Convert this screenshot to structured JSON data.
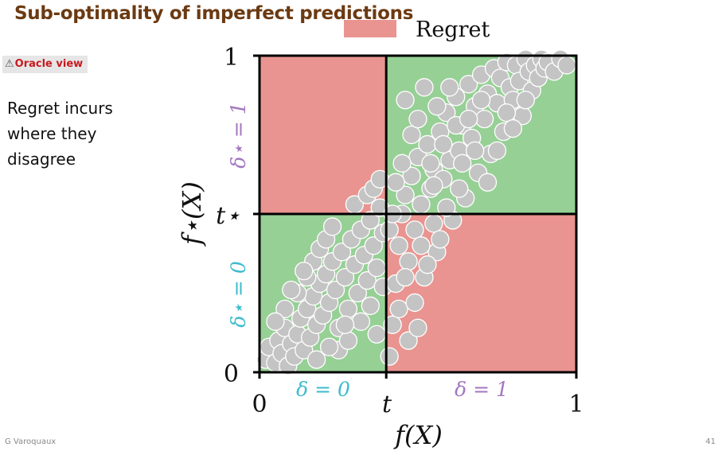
{
  "slide": {
    "title": "Sub-optimality of imperfect predictions",
    "badge_label": "Oracle view",
    "badge_icon": "warning-triangle-icon",
    "side_text": "Regret incurs where they disagree",
    "author": "G Varoquaux",
    "page_number": "41"
  },
  "colors": {
    "title": "#6b3a12",
    "badge_text": "#c8191e",
    "regret": "#e99490",
    "agree": "#96d095",
    "points": "#c4c4c4",
    "delta_one": "#a377bf",
    "delta_zero": "#3cbccc"
  },
  "chart_data": {
    "type": "scatter",
    "xlabel": "f(X)",
    "ylabel": "f⋆(X)",
    "xlim": [
      0,
      1
    ],
    "ylim": [
      0,
      1
    ],
    "threshold_x": 0.4,
    "threshold_y": 0.5,
    "x_tick_labels": [
      "0",
      "t",
      "1"
    ],
    "y_tick_labels": [
      "0",
      "t⋆",
      "1"
    ],
    "legend": {
      "label": "Regret",
      "placement": "top"
    },
    "region_labels": {
      "x_low": "δ = 0",
      "x_high": "δ = 1",
      "y_low": "δ⋆ = 0",
      "y_high": "δ⋆ = 1"
    },
    "regions": [
      {
        "x": [
          0,
          0.4
        ],
        "y": [
          0.5,
          1
        ],
        "kind": "regret"
      },
      {
        "x": [
          0.4,
          1
        ],
        "y": [
          0,
          0.5
        ],
        "kind": "regret"
      },
      {
        "x": [
          0,
          0.4
        ],
        "y": [
          0,
          0.5
        ],
        "kind": "agree"
      },
      {
        "x": [
          0.4,
          1
        ],
        "y": [
          0.5,
          1
        ],
        "kind": "agree"
      }
    ],
    "points": [
      [
        0.02,
        0.04
      ],
      [
        0.03,
        0.08
      ],
      [
        0.05,
        0.03
      ],
      [
        0.06,
        0.1
      ],
      [
        0.07,
        0.06
      ],
      [
        0.08,
        0.14
      ],
      [
        0.09,
        0.02
      ],
      [
        0.1,
        0.09
      ],
      [
        0.11,
        0.05
      ],
      [
        0.12,
        0.12
      ],
      [
        0.13,
        0.17
      ],
      [
        0.14,
        0.07
      ],
      [
        0.15,
        0.2
      ],
      [
        0.16,
        0.11
      ],
      [
        0.17,
        0.24
      ],
      [
        0.18,
        0.15
      ],
      [
        0.19,
        0.28
      ],
      [
        0.2,
        0.18
      ],
      [
        0.21,
        0.31
      ],
      [
        0.22,
        0.22
      ],
      [
        0.23,
        0.35
      ],
      [
        0.24,
        0.26
      ],
      [
        0.25,
        0.14
      ],
      [
        0.26,
        0.38
      ],
      [
        0.27,
        0.3
      ],
      [
        0.28,
        0.2
      ],
      [
        0.29,
        0.42
      ],
      [
        0.3,
        0.34
      ],
      [
        0.31,
        0.25
      ],
      [
        0.32,
        0.45
      ],
      [
        0.33,
        0.37
      ],
      [
        0.34,
        0.29
      ],
      [
        0.35,
        0.48
      ],
      [
        0.36,
        0.4
      ],
      [
        0.37,
        0.33
      ],
      [
        0.38,
        0.52
      ],
      [
        0.39,
        0.44
      ],
      [
        0.15,
        0.3
      ],
      [
        0.17,
        0.35
      ],
      [
        0.19,
        0.39
      ],
      [
        0.21,
        0.42
      ],
      [
        0.23,
        0.46
      ],
      [
        0.12,
        0.25
      ],
      [
        0.14,
        0.32
      ],
      [
        0.08,
        0.2
      ],
      [
        0.1,
        0.26
      ],
      [
        0.3,
        0.53
      ],
      [
        0.34,
        0.56
      ],
      [
        0.36,
        0.58
      ],
      [
        0.38,
        0.61
      ],
      [
        0.25,
        0.07
      ],
      [
        0.28,
        0.1
      ],
      [
        0.32,
        0.16
      ],
      [
        0.35,
        0.21
      ],
      [
        0.37,
        0.12
      ],
      [
        0.39,
        0.27
      ],
      [
        0.18,
        0.04
      ],
      [
        0.22,
        0.08
      ],
      [
        0.05,
        0.16
      ],
      [
        0.27,
        0.15
      ],
      [
        0.41,
        0.05
      ],
      [
        0.42,
        0.15
      ],
      [
        0.43,
        0.28
      ],
      [
        0.44,
        0.4
      ],
      [
        0.45,
        0.5
      ],
      [
        0.46,
        0.56
      ],
      [
        0.47,
        0.35
      ],
      [
        0.48,
        0.62
      ],
      [
        0.49,
        0.45
      ],
      [
        0.5,
        0.68
      ],
      [
        0.51,
        0.53
      ],
      [
        0.52,
        0.3
      ],
      [
        0.53,
        0.72
      ],
      [
        0.54,
        0.58
      ],
      [
        0.55,
        0.64
      ],
      [
        0.56,
        0.38
      ],
      [
        0.57,
        0.76
      ],
      [
        0.58,
        0.61
      ],
      [
        0.59,
        0.82
      ],
      [
        0.6,
        0.67
      ],
      [
        0.61,
        0.48
      ],
      [
        0.62,
        0.87
      ],
      [
        0.63,
        0.7
      ],
      [
        0.64,
        0.78
      ],
      [
        0.65,
        0.55
      ],
      [
        0.66,
        0.91
      ],
      [
        0.67,
        0.74
      ],
      [
        0.68,
        0.84
      ],
      [
        0.69,
        0.63
      ],
      [
        0.7,
        0.94
      ],
      [
        0.71,
        0.8
      ],
      [
        0.72,
        0.88
      ],
      [
        0.73,
        0.69
      ],
      [
        0.74,
        0.96
      ],
      [
        0.75,
        0.85
      ],
      [
        0.76,
        0.93
      ],
      [
        0.77,
        0.76
      ],
      [
        0.78,
        0.98
      ],
      [
        0.79,
        0.9
      ],
      [
        0.8,
        0.86
      ],
      [
        0.81,
        0.97
      ],
      [
        0.82,
        0.92
      ],
      [
        0.83,
        0.81
      ],
      [
        0.84,
        0.99
      ],
      [
        0.85,
        0.95
      ],
      [
        0.86,
        0.89
      ],
      [
        0.87,
        0.97
      ],
      [
        0.88,
        0.93
      ],
      [
        0.89,
        0.99
      ],
      [
        0.9,
        0.96
      ],
      [
        0.91,
        0.98
      ],
      [
        0.93,
        0.95
      ],
      [
        0.95,
        0.99
      ],
      [
        0.97,
        0.97
      ],
      [
        0.46,
        0.86
      ],
      [
        0.48,
        0.75
      ],
      [
        0.5,
        0.8
      ],
      [
        0.52,
        0.9
      ],
      [
        0.54,
        0.66
      ],
      [
        0.56,
        0.84
      ],
      [
        0.58,
        0.72
      ],
      [
        0.6,
        0.9
      ],
      [
        0.62,
        0.78
      ],
      [
        0.64,
        0.66
      ],
      [
        0.66,
        0.8
      ],
      [
        0.68,
        0.7
      ],
      [
        0.7,
        0.86
      ],
      [
        0.72,
        0.6
      ],
      [
        0.44,
        0.2
      ],
      [
        0.46,
        0.3
      ],
      [
        0.49,
        0.22
      ],
      [
        0.51,
        0.4
      ],
      [
        0.53,
        0.34
      ],
      [
        0.55,
        0.47
      ],
      [
        0.57,
        0.42
      ],
      [
        0.59,
        0.52
      ],
      [
        0.47,
        0.1
      ],
      [
        0.5,
        0.14
      ],
      [
        0.43,
        0.6
      ],
      [
        0.45,
        0.66
      ],
      [
        0.41,
        0.45
      ],
      [
        0.42,
        0.5
      ],
      [
        0.55,
        0.59
      ],
      [
        0.63,
        0.58
      ],
      [
        0.75,
        0.7
      ],
      [
        0.78,
        0.82
      ],
      [
        0.8,
        0.77
      ],
      [
        0.84,
        0.86
      ]
    ]
  }
}
